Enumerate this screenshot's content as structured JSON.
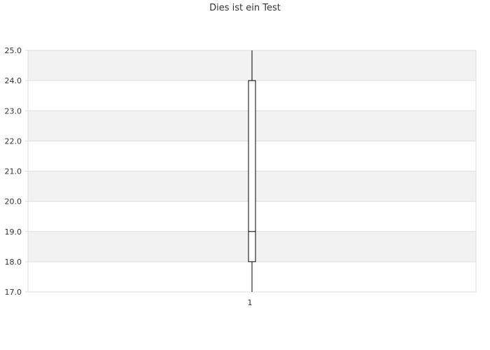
{
  "chart_data": {
    "type": "box",
    "title": "Dies ist ein Test",
    "xlabel": "",
    "ylabel": "",
    "categories": [
      "1"
    ],
    "ylim": [
      17.0,
      25.0
    ],
    "y_ticks": [
      "17.0",
      "18.0",
      "19.0",
      "20.0",
      "21.0",
      "22.0",
      "23.0",
      "24.0",
      "25.0"
    ],
    "boxes": [
      {
        "category": "1",
        "whisker_low": 17.0,
        "q1": 18.0,
        "median": 19.0,
        "q3": 24.0,
        "whisker_high": 25.0
      }
    ],
    "grid": "horizontal alternating bands",
    "legend": "none",
    "colors": {
      "band": "#f2f2f2",
      "grid_line": "#dddddd",
      "box_stroke": "#000000",
      "text": "#333333"
    }
  }
}
